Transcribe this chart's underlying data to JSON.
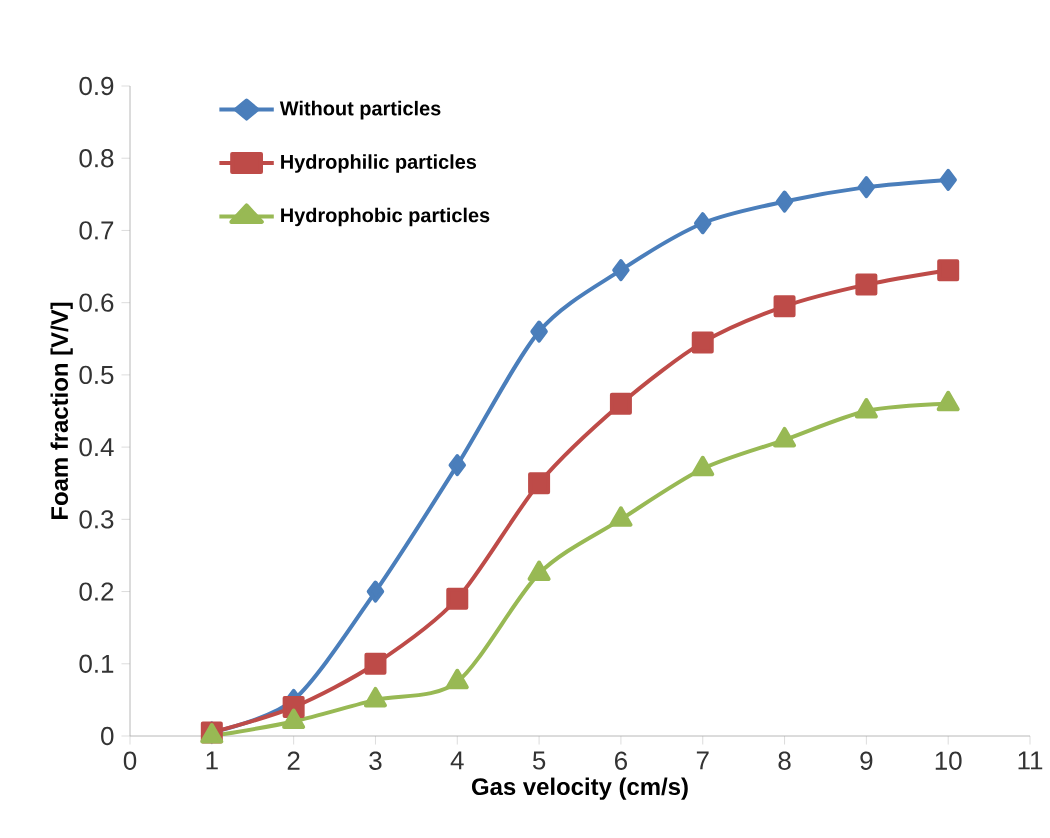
{
  "chart_data": {
    "type": "line",
    "xlabel": "Gas velocity (cm/s)",
    "ylabel": "Foam fraction [V/V]",
    "x": [
      1,
      2,
      3,
      4,
      5,
      6,
      7,
      8,
      9,
      10
    ],
    "series": [
      {
        "name": "Without particles",
        "color": "#4a7ebb",
        "marker": "diamond",
        "values": [
          0.005,
          0.05,
          0.2,
          0.375,
          0.56,
          0.645,
          0.71,
          0.74,
          0.76,
          0.77
        ]
      },
      {
        "name": "Hydrophilic particles",
        "color": "#be4b48",
        "marker": "square",
        "values": [
          0.005,
          0.04,
          0.1,
          0.19,
          0.35,
          0.46,
          0.545,
          0.595,
          0.625,
          0.645
        ]
      },
      {
        "name": "Hydrophobic particles",
        "color": "#98b954",
        "marker": "triangle",
        "values": [
          0,
          0.02,
          0.05,
          0.075,
          0.225,
          0.3,
          0.37,
          0.41,
          0.45,
          0.46
        ]
      }
    ],
    "xlim": [
      0,
      11
    ],
    "xticks": [
      0,
      1,
      2,
      3,
      4,
      5,
      6,
      7,
      8,
      9,
      10,
      11
    ],
    "ylim": [
      0,
      0.9
    ],
    "yticks": [
      0,
      0.1,
      0.2,
      0.3,
      0.4,
      0.5,
      0.6,
      0.7,
      0.8,
      0.9
    ],
    "grid": false,
    "legend": "top left",
    "line_style": "solid"
  }
}
